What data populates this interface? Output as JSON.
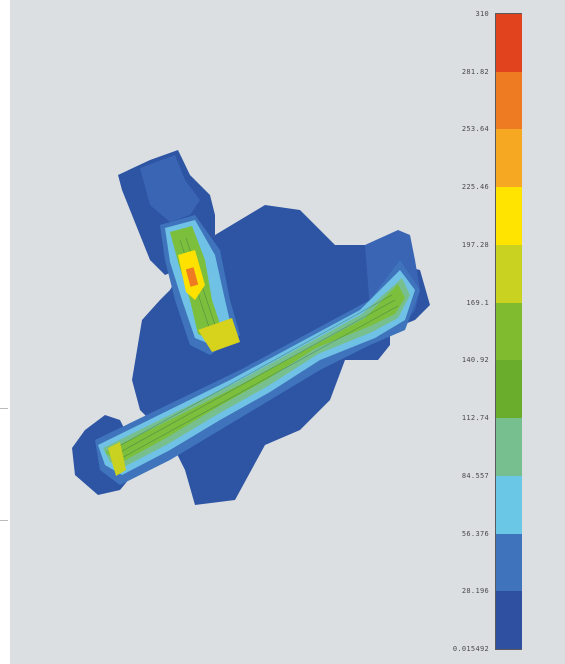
{
  "colorbar": {
    "tick_labels": [
      "310",
      "281.82",
      "253.64",
      "225.46",
      "197.28",
      "169.1",
      "140.92",
      "112.74",
      "84.557",
      "56.376",
      "28.196",
      "0.015492"
    ],
    "band_colors": [
      "#e2431f",
      "#ee7a22",
      "#f7a823",
      "#ffe400",
      "#c9d221",
      "#80bb2f",
      "#6aad2d",
      "#77bf8f",
      "#6ac7e6",
      "#3f74bd",
      "#2f4fa0"
    ]
  },
  "model": {
    "background_color": "#dcdfe2",
    "body_color": "#2e55a3",
    "low_stress_color": "#6fc2e5",
    "channel_color": "#7bbf3c",
    "hotspot_color": "#ffe100"
  }
}
